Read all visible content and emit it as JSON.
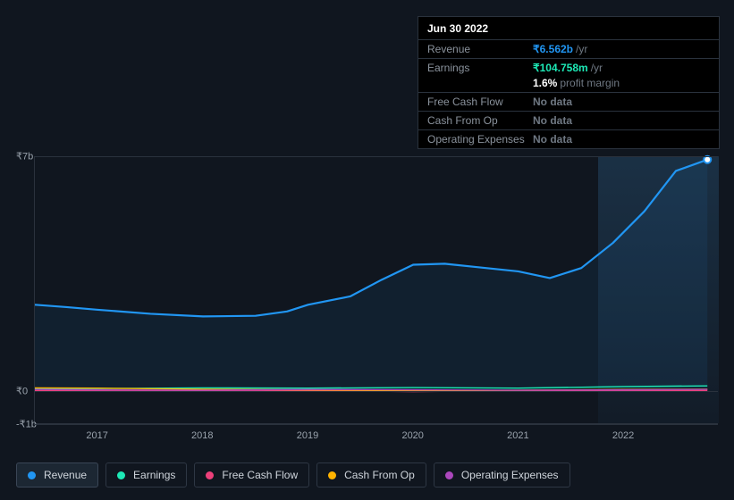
{
  "chart": {
    "type": "area-line",
    "background_color": "#10161f",
    "grid_color": "#2a323d",
    "y_axis": {
      "ticks": [
        {
          "label": "₹7b",
          "value": 7
        },
        {
          "label": "₹0",
          "value": 0
        },
        {
          "label": "-₹1b",
          "value": -1
        }
      ],
      "min": -1,
      "max": 7,
      "label_color": "#9aa3ad",
      "label_fontsize": 11
    },
    "x_axis": {
      "ticks": [
        "2017",
        "2018",
        "2019",
        "2020",
        "2021",
        "2022"
      ],
      "min": 2016.4,
      "max": 2022.9,
      "label_color": "#9aa3ad",
      "label_fontsize": 11
    },
    "highlight": {
      "from": 2021.75,
      "to": 2022.9
    },
    "series": [
      {
        "key": "revenue",
        "label": "Revenue",
        "color": "#2196f3",
        "width": 2.2,
        "fill": "rgba(33,150,243,0.08)",
        "active": true,
        "points": [
          [
            2016.4,
            2.55
          ],
          [
            2016.7,
            2.48
          ],
          [
            2017.0,
            2.4
          ],
          [
            2017.5,
            2.28
          ],
          [
            2018.0,
            2.2
          ],
          [
            2018.5,
            2.22
          ],
          [
            2018.8,
            2.35
          ],
          [
            2019.0,
            2.55
          ],
          [
            2019.4,
            2.8
          ],
          [
            2019.7,
            3.3
          ],
          [
            2020.0,
            3.75
          ],
          [
            2020.3,
            3.78
          ],
          [
            2020.6,
            3.68
          ],
          [
            2021.0,
            3.55
          ],
          [
            2021.3,
            3.35
          ],
          [
            2021.6,
            3.65
          ],
          [
            2021.9,
            4.4
          ],
          [
            2022.2,
            5.35
          ],
          [
            2022.5,
            6.56
          ],
          [
            2022.8,
            6.9
          ]
        ]
      },
      {
        "key": "earnings",
        "label": "Earnings",
        "color": "#1de9b6",
        "width": 1.4,
        "fill": "none",
        "active": false,
        "points": [
          [
            2016.4,
            0.03
          ],
          [
            2017,
            0.04
          ],
          [
            2018,
            0.06
          ],
          [
            2019,
            0.05
          ],
          [
            2020,
            0.07
          ],
          [
            2021,
            0.05
          ],
          [
            2022,
            0.1
          ],
          [
            2022.8,
            0.12
          ]
        ]
      },
      {
        "key": "fcf",
        "label": "Free Cash Flow",
        "color": "#ec407a",
        "width": 1.4,
        "fill": "none",
        "active": false,
        "points": [
          [
            2016.4,
            -0.02
          ],
          [
            2017,
            -0.03
          ],
          [
            2018,
            -0.04
          ],
          [
            2019,
            -0.02
          ],
          [
            2020,
            -0.05
          ],
          [
            2021,
            -0.03
          ],
          [
            2022,
            -0.02
          ],
          [
            2022.8,
            -0.02
          ]
        ]
      },
      {
        "key": "cfo",
        "label": "Cash From Op",
        "color": "#ffb300",
        "width": 1.4,
        "fill": "none",
        "active": false,
        "points": [
          [
            2016.4,
            0.06
          ],
          [
            2017,
            0.05
          ],
          [
            2018,
            0.02
          ],
          [
            2019,
            0.0
          ],
          [
            2020,
            -0.03
          ],
          [
            2021,
            -0.01
          ],
          [
            2022,
            0.01
          ],
          [
            2022.8,
            0.02
          ]
        ]
      },
      {
        "key": "opex",
        "label": "Operating Expenses",
        "color": "#ab47bc",
        "width": 1.4,
        "fill": "none",
        "active": false,
        "points": [
          [
            2016.4,
            0.01
          ],
          [
            2017,
            0.0
          ],
          [
            2018,
            -0.01
          ],
          [
            2019,
            0.01
          ],
          [
            2020,
            0.0
          ],
          [
            2021,
            -0.01
          ],
          [
            2022,
            0.0
          ],
          [
            2022.8,
            0.01
          ]
        ]
      }
    ]
  },
  "tooltip": {
    "date": "Jun 30 2022",
    "rows": [
      {
        "label": "Revenue",
        "value": "₹6.562b",
        "suffix": "/yr",
        "color": "#2196f3"
      },
      {
        "label": "Earnings",
        "value": "₹104.758m",
        "suffix": "/yr",
        "color": "#1de9b6"
      },
      {
        "label": "",
        "value": "1.6%",
        "suffix": "profit margin",
        "color": "#ffffff",
        "noborder": true
      },
      {
        "label": "Free Cash Flow",
        "value": "No data",
        "suffix": "",
        "color": "#6f7883"
      },
      {
        "label": "Cash From Op",
        "value": "No data",
        "suffix": "",
        "color": "#6f7883"
      },
      {
        "label": "Operating Expenses",
        "value": "No data",
        "suffix": "",
        "color": "#6f7883"
      }
    ]
  },
  "legend": {
    "items": [
      {
        "key": "revenue",
        "label": "Revenue",
        "color": "#2196f3",
        "active": true
      },
      {
        "key": "earnings",
        "label": "Earnings",
        "color": "#1de9b6",
        "active": false
      },
      {
        "key": "fcf",
        "label": "Free Cash Flow",
        "color": "#ec407a",
        "active": false
      },
      {
        "key": "cfo",
        "label": "Cash From Op",
        "color": "#ffb300",
        "active": false
      },
      {
        "key": "opex",
        "label": "Operating Expenses",
        "color": "#ab47bc",
        "active": false
      }
    ]
  }
}
